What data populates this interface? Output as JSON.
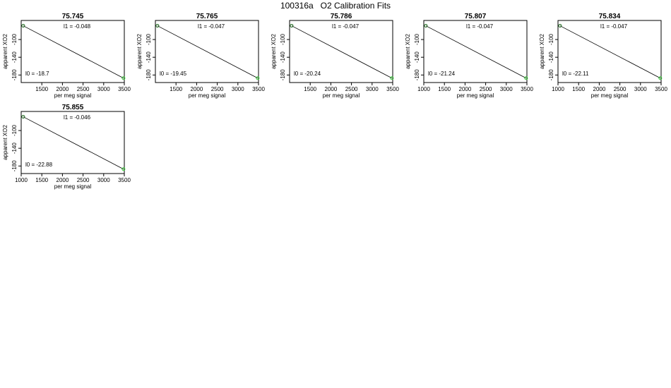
{
  "title": "100316a   O2 Calibration Fits",
  "chart_data": [
    {
      "type": "scatter",
      "title": "75.745",
      "xlabel": "per meg signal",
      "ylabel": "apparent XO2",
      "xticks": [
        1500,
        2000,
        2500,
        3000,
        3500
      ],
      "yticks": [
        -100,
        -140,
        -180
      ],
      "xlim": [
        1000,
        3500
      ],
      "ylim": [
        -197,
        -57
      ],
      "annotations": {
        "l1": "l1 =  -0.048",
        "l0": "l0 =  -18.7"
      },
      "fit_line": {
        "x": [
          1050,
          3480
        ],
        "y": [
          -69,
          -187
        ]
      },
      "points": [
        {
          "x": 1050,
          "y": -69,
          "color": "#1a6b1a"
        },
        {
          "x": 3480,
          "y": -187,
          "color": "#2ecc2e"
        }
      ]
    },
    {
      "type": "scatter",
      "title": "75.765",
      "xlabel": "per meg signal",
      "ylabel": "apparent XO2",
      "xticks": [
        1500,
        2000,
        2500,
        3000,
        3500
      ],
      "yticks": [
        -100,
        -140,
        -180
      ],
      "xlim": [
        1000,
        3500
      ],
      "ylim": [
        -197,
        -57
      ],
      "annotations": {
        "l1": "l1 =  -0.047",
        "l0": "l0 =  -19.45"
      },
      "fit_line": {
        "x": [
          1050,
          3480
        ],
        "y": [
          -69,
          -187
        ]
      },
      "points": [
        {
          "x": 1050,
          "y": -69,
          "color": "#1a6b1a"
        },
        {
          "x": 3480,
          "y": -187,
          "color": "#2ecc2e"
        }
      ]
    },
    {
      "type": "scatter",
      "title": "75.786",
      "xlabel": "per meg signal",
      "ylabel": "apparent XO2",
      "xticks": [
        1500,
        2000,
        2500,
        3000,
        3500
      ],
      "yticks": [
        -100,
        -140,
        -180
      ],
      "xlim": [
        1000,
        3500
      ],
      "ylim": [
        -197,
        -57
      ],
      "annotations": {
        "l1": "l1 =  -0.047",
        "l0": "l0 =  -20.24"
      },
      "fit_line": {
        "x": [
          1050,
          3480
        ],
        "y": [
          -69,
          -187
        ]
      },
      "points": [
        {
          "x": 1050,
          "y": -69,
          "color": "#1a6b1a"
        },
        {
          "x": 3480,
          "y": -187,
          "color": "#2ecc2e"
        }
      ]
    },
    {
      "type": "scatter",
      "title": "75.807",
      "xlabel": "per meg signal",
      "ylabel": "apparent XO2",
      "xticks": [
        1000,
        1500,
        2000,
        2500,
        3000,
        3500
      ],
      "yticks": [
        -100,
        -140,
        -180
      ],
      "xlim": [
        1000,
        3500
      ],
      "ylim": [
        -197,
        -57
      ],
      "annotations": {
        "l1": "l1 =  -0.047",
        "l0": "l0 =  -21.24"
      },
      "fit_line": {
        "x": [
          1050,
          3480
        ],
        "y": [
          -69,
          -187
        ]
      },
      "points": [
        {
          "x": 1050,
          "y": -69,
          "color": "#1a6b1a"
        },
        {
          "x": 3480,
          "y": -187,
          "color": "#2ecc2e"
        }
      ]
    },
    {
      "type": "scatter",
      "title": "75.834",
      "xlabel": "per meg signal",
      "ylabel": "apparent XO2",
      "xticks": [
        1000,
        1500,
        2000,
        2500,
        3000,
        3500
      ],
      "yticks": [
        -100,
        -140,
        -180
      ],
      "xlim": [
        1000,
        3500
      ],
      "ylim": [
        -197,
        -57
      ],
      "annotations": {
        "l1": "l1 =  -0.047",
        "l0": "l0 =  -22.11"
      },
      "fit_line": {
        "x": [
          1050,
          3480
        ],
        "y": [
          -69,
          -187
        ]
      },
      "points": [
        {
          "x": 1050,
          "y": -69,
          "color": "#1a6b1a"
        },
        {
          "x": 3480,
          "y": -187,
          "color": "#2ecc2e"
        }
      ]
    },
    {
      "type": "scatter",
      "title": "75.855",
      "xlabel": "per meg signal",
      "ylabel": "apparent XO2",
      "xticks": [
        1000,
        1500,
        2000,
        2500,
        3000,
        3500
      ],
      "yticks": [
        -100,
        -140,
        -180
      ],
      "xlim": [
        1000,
        3500
      ],
      "ylim": [
        -197,
        -57
      ],
      "annotations": {
        "l1": "l1 =  -0.046",
        "l0": "l0 =  -22.88"
      },
      "fit_line": {
        "x": [
          1050,
          3480
        ],
        "y": [
          -69,
          -187
        ]
      },
      "points": [
        {
          "x": 1050,
          "y": -69,
          "color": "#1a6b1a"
        },
        {
          "x": 3480,
          "y": -187,
          "color": "#2ecc2e"
        }
      ]
    }
  ]
}
